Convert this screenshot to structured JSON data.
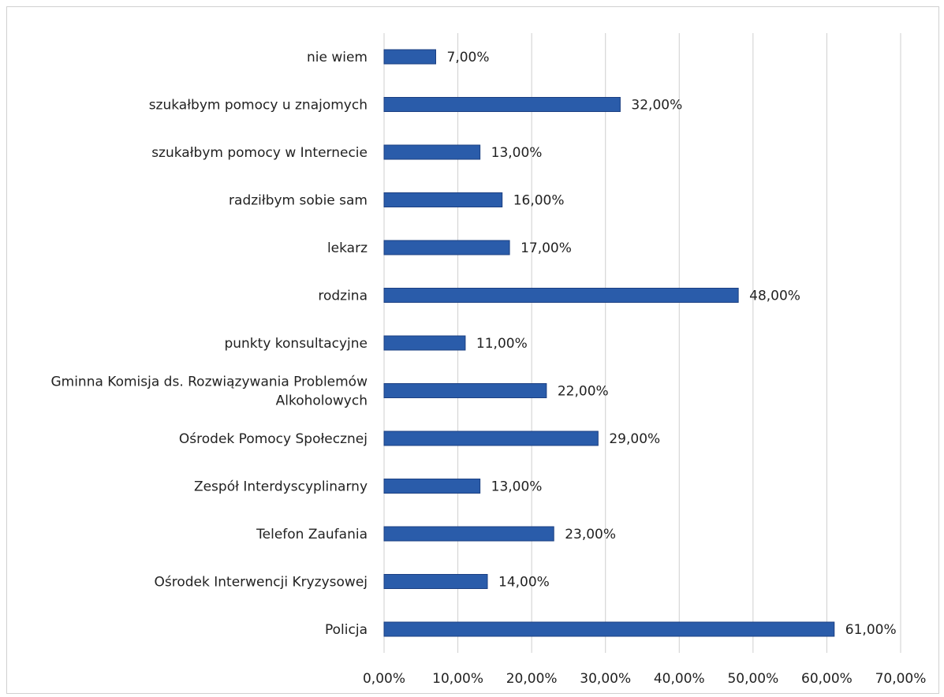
{
  "chart_data": {
    "type": "bar",
    "orientation": "horizontal",
    "categories": [
      "nie wiem",
      "szukałbym pomocy u znajomych",
      "szukałbym pomocy w Internecie",
      "radziłbym sobie sam",
      "lekarz",
      "rodzina",
      "punkty konsultacyjne",
      "Gminna Komisja ds. Rozwiązywania Problemów Alkoholowych",
      "Ośrodek Pomocy Społecznej",
      "Zespół Interdyscyplinarny",
      "Telefon Zaufania",
      "Ośrodek Interwencji Kryzysowej",
      "Policja"
    ],
    "category_label_lines": [
      [
        "nie wiem"
      ],
      [
        "szukałbym pomocy u znajomych"
      ],
      [
        "szukałbym pomocy w Internecie"
      ],
      [
        "radziłbym sobie sam"
      ],
      [
        "lekarz"
      ],
      [
        "rodzina"
      ],
      [
        "punkty konsultacyjne"
      ],
      [
        "Gminna Komisja ds. Rozwiązywania Problemów",
        "Alkoholowych"
      ],
      [
        "Ośrodek Pomocy Społecznej"
      ],
      [
        "Zespół Interdyscyplinarny"
      ],
      [
        "Telefon Zaufania"
      ],
      [
        "Ośrodek Interwencji Kryzysowej"
      ],
      [
        "Policja"
      ]
    ],
    "values": [
      7,
      32,
      13,
      16,
      17,
      48,
      11,
      22,
      29,
      13,
      23,
      14,
      61
    ],
    "data_labels": [
      "7,00%",
      "32,00%",
      "13,00%",
      "16,00%",
      "17,00%",
      "48,00%",
      "11,00%",
      "22,00%",
      "29,00%",
      "13,00%",
      "23,00%",
      "14,00%",
      "61,00%"
    ],
    "xlim": [
      0,
      70
    ],
    "xticks": [
      0,
      10,
      20,
      30,
      40,
      50,
      60,
      70
    ],
    "xtick_labels": [
      "0,00%",
      "10,00%",
      "20,00%",
      "30,00%",
      "40,00%",
      "50,00%",
      "60,00%",
      "70,00%"
    ],
    "grid": "vertical",
    "legend": "none",
    "title": "",
    "xlabel": "",
    "ylabel": "",
    "colors": {
      "bar": "#2a5caa",
      "bar_edge": "#1b3f82",
      "grid": "#cfcfcf",
      "text": "#222222"
    }
  }
}
